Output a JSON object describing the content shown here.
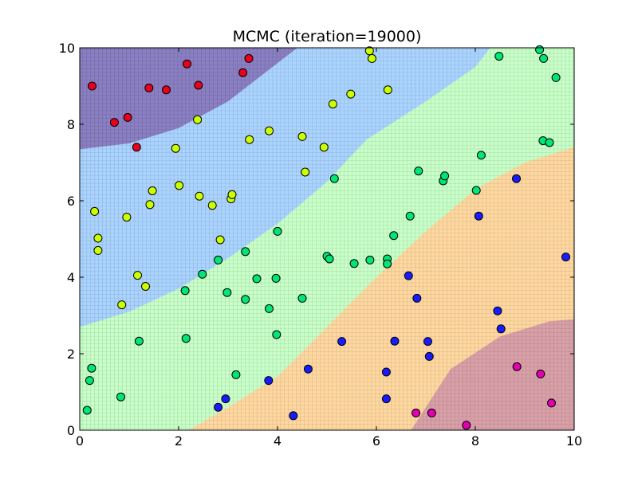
{
  "chart_data": {
    "type": "scatter",
    "title": "MCMC (iteration=19000)",
    "xlabel": "",
    "ylabel": "",
    "xlim": [
      0,
      10
    ],
    "ylim": [
      0,
      10
    ],
    "xticks": [
      "0",
      "2",
      "4",
      "6",
      "8",
      "10"
    ],
    "yticks": [
      "0",
      "2",
      "4",
      "6",
      "8",
      "10"
    ],
    "grid": false,
    "regions": [
      {
        "label_color": "#e8001d",
        "color": "#8a7fc2",
        "boundary": [
          [
            0,
            7.35
          ],
          [
            1.0,
            7.5
          ],
          [
            2.0,
            7.9
          ],
          [
            3.0,
            8.6
          ],
          [
            3.8,
            9.4
          ],
          [
            4.4,
            10
          ]
        ]
      },
      {
        "label_color": "#ccff00",
        "color": "#aad4ff",
        "boundary": [
          [
            0,
            2.7
          ],
          [
            1.0,
            3.1
          ],
          [
            2.0,
            3.7
          ],
          [
            3.0,
            4.5
          ],
          [
            4.0,
            5.4
          ],
          [
            5.0,
            6.5
          ],
          [
            5.8,
            7.6
          ],
          [
            7.0,
            8.6
          ],
          [
            8.0,
            9.5
          ],
          [
            8.3,
            10
          ]
        ]
      },
      {
        "label_color": "#00e676",
        "color": "#c8ffc8",
        "boundary": [
          [
            2.2,
            0
          ],
          [
            3.0,
            0.6
          ],
          [
            4.0,
            1.4
          ],
          [
            5.0,
            2.7
          ],
          [
            6.0,
            4.0
          ],
          [
            7.0,
            5.2
          ],
          [
            8.0,
            6.3
          ],
          [
            9.0,
            7.0
          ],
          [
            10,
            7.4
          ]
        ]
      },
      {
        "label_color": "#1a1aff",
        "color": "#ffd8a0",
        "boundary": [
          [
            6.7,
            0
          ],
          [
            7.5,
            1.6
          ],
          [
            8.5,
            2.45
          ],
          [
            9.5,
            2.85
          ],
          [
            10,
            2.9
          ]
        ]
      },
      {
        "label_color": "#e000b0",
        "color": "#d9a0a8",
        "boundary": []
      }
    ],
    "series": [
      {
        "color": "#e8001d",
        "points": [
          [
            0.25,
            9.0
          ],
          [
            0.7,
            8.05
          ],
          [
            0.97,
            8.18
          ],
          [
            1.15,
            7.4
          ],
          [
            1.4,
            8.95
          ],
          [
            1.75,
            8.9
          ],
          [
            2.17,
            9.58
          ],
          [
            2.4,
            9.02
          ],
          [
            3.3,
            9.35
          ],
          [
            3.42,
            9.72
          ]
        ]
      },
      {
        "color": "#ccff00",
        "points": [
          [
            0.3,
            5.72
          ],
          [
            0.37,
            5.02
          ],
          [
            0.37,
            4.7
          ],
          [
            0.85,
            3.28
          ],
          [
            0.95,
            5.57
          ],
          [
            1.17,
            4.05
          ],
          [
            1.33,
            3.76
          ],
          [
            1.42,
            5.9
          ],
          [
            1.47,
            6.26
          ],
          [
            1.94,
            7.37
          ],
          [
            2.01,
            6.4
          ],
          [
            2.38,
            8.12
          ],
          [
            2.42,
            6.12
          ],
          [
            2.68,
            5.88
          ],
          [
            2.84,
            4.98
          ],
          [
            3.06,
            6.05
          ],
          [
            3.08,
            6.16
          ],
          [
            3.43,
            7.6
          ],
          [
            3.83,
            7.83
          ],
          [
            4.5,
            7.68
          ],
          [
            4.56,
            6.75
          ],
          [
            4.94,
            7.4
          ],
          [
            5.12,
            8.53
          ],
          [
            5.48,
            8.79
          ],
          [
            5.86,
            9.92
          ],
          [
            5.91,
            9.72
          ],
          [
            6.23,
            8.9
          ]
        ]
      },
      {
        "color": "#00e676",
        "points": [
          [
            0.15,
            0.52
          ],
          [
            0.2,
            1.3
          ],
          [
            0.24,
            1.62
          ],
          [
            0.83,
            0.87
          ],
          [
            1.2,
            2.33
          ],
          [
            2.13,
            3.65
          ],
          [
            2.15,
            2.4
          ],
          [
            2.48,
            4.08
          ],
          [
            2.8,
            4.45
          ],
          [
            2.98,
            3.6
          ],
          [
            3.16,
            1.45
          ],
          [
            3.35,
            4.67
          ],
          [
            3.35,
            3.42
          ],
          [
            3.58,
            3.96
          ],
          [
            3.83,
            3.18
          ],
          [
            3.97,
            3.97
          ],
          [
            3.98,
            2.5
          ],
          [
            4.0,
            5.2
          ],
          [
            4.5,
            3.45
          ],
          [
            5.0,
            4.55
          ],
          [
            5.05,
            4.48
          ],
          [
            5.15,
            6.58
          ],
          [
            5.55,
            4.36
          ],
          [
            5.87,
            4.45
          ],
          [
            6.22,
            4.48
          ],
          [
            6.22,
            4.35
          ],
          [
            6.35,
            5.09
          ],
          [
            6.68,
            5.6
          ],
          [
            6.85,
            6.78
          ],
          [
            7.35,
            6.52
          ],
          [
            7.38,
            6.65
          ],
          [
            8.02,
            6.27
          ],
          [
            8.12,
            7.19
          ],
          [
            8.48,
            9.78
          ],
          [
            9.3,
            9.95
          ],
          [
            9.37,
            7.57
          ],
          [
            9.38,
            9.72
          ],
          [
            9.5,
            7.52
          ],
          [
            9.63,
            9.22
          ]
        ]
      },
      {
        "color": "#1a1aff",
        "points": [
          [
            2.8,
            0.6
          ],
          [
            2.95,
            0.82
          ],
          [
            3.82,
            1.3
          ],
          [
            4.32,
            0.38
          ],
          [
            4.62,
            1.6
          ],
          [
            5.3,
            2.32
          ],
          [
            6.2,
            1.52
          ],
          [
            6.2,
            0.82
          ],
          [
            6.37,
            2.33
          ],
          [
            6.65,
            4.04
          ],
          [
            6.82,
            3.45
          ],
          [
            7.04,
            2.32
          ],
          [
            7.07,
            1.93
          ],
          [
            8.07,
            5.6
          ],
          [
            8.45,
            3.12
          ],
          [
            8.52,
            2.65
          ],
          [
            8.83,
            6.58
          ],
          [
            9.83,
            4.53
          ]
        ]
      },
      {
        "color": "#e000b0",
        "points": [
          [
            6.8,
            0.45
          ],
          [
            7.12,
            0.45
          ],
          [
            7.82,
            0.13
          ],
          [
            8.84,
            1.66
          ],
          [
            9.32,
            1.47
          ],
          [
            9.54,
            0.71
          ]
        ]
      }
    ]
  }
}
